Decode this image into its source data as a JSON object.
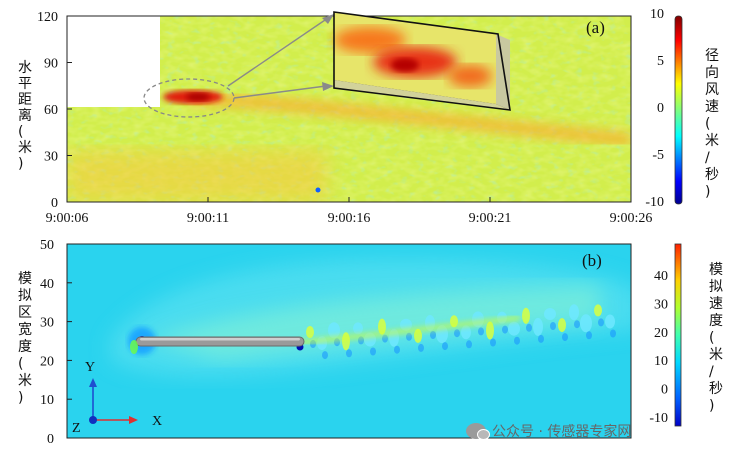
{
  "chart_data": [
    {
      "id": "a",
      "type": "heatmap",
      "panel_tag": "(a)",
      "ylabel": "水平距离(米)",
      "x_ticks": [
        "9:00:06",
        "9:00:11",
        "9:00:16",
        "9:00:21",
        "9:00:26"
      ],
      "y_ticks": [
        0,
        30,
        60,
        90,
        120
      ],
      "ylim": [
        0,
        120
      ],
      "colorbar": {
        "label": "径向风速(米/秒)",
        "ticks": [
          10,
          5,
          0,
          -5,
          -10
        ],
        "range": [
          -10,
          10
        ]
      },
      "background_value": 1.5,
      "no_data_region": {
        "x_range": [
          "9:00:06",
          "9:00:09.3"
        ],
        "y_range": [
          63,
          120
        ]
      },
      "features": [
        {
          "label": "wake-core",
          "x_start": "9:00:09.5",
          "x_end": "9:00:12.5",
          "y": 70,
          "peak_value": 9
        },
        {
          "label": "wake-trail",
          "x_start": "9:00:12.5",
          "x_end": "9:00:26",
          "y_start": 68,
          "y_end": 44,
          "value": 4
        }
      ],
      "annotations": [
        "dashed ellipse around wake core",
        "zoom inset of wake core"
      ]
    },
    {
      "id": "b",
      "type": "heatmap",
      "panel_tag": "(b)",
      "ylabel": "模拟区宽度(米)",
      "y_ticks": [
        0,
        10,
        20,
        30,
        40,
        50
      ],
      "ylim": [
        0,
        50
      ],
      "colorbar": {
        "label": "模拟速度(米/秒)",
        "ticks": [
          40,
          30,
          20,
          10,
          0,
          -10
        ],
        "range": [
          -10,
          40
        ]
      },
      "background_value": 10,
      "features": [
        {
          "label": "aircraft-body",
          "y": 24.5,
          "length_fraction": 0.28
        },
        {
          "label": "wake-plume",
          "start_y": 25,
          "end_y": 34,
          "value": 15
        }
      ],
      "axes_triad": {
        "x": "X",
        "y": "Y",
        "z": "Z"
      }
    }
  ],
  "watermark": {
    "text": "公众号 · 传感器专家网",
    "icon": "wechat-icon"
  }
}
